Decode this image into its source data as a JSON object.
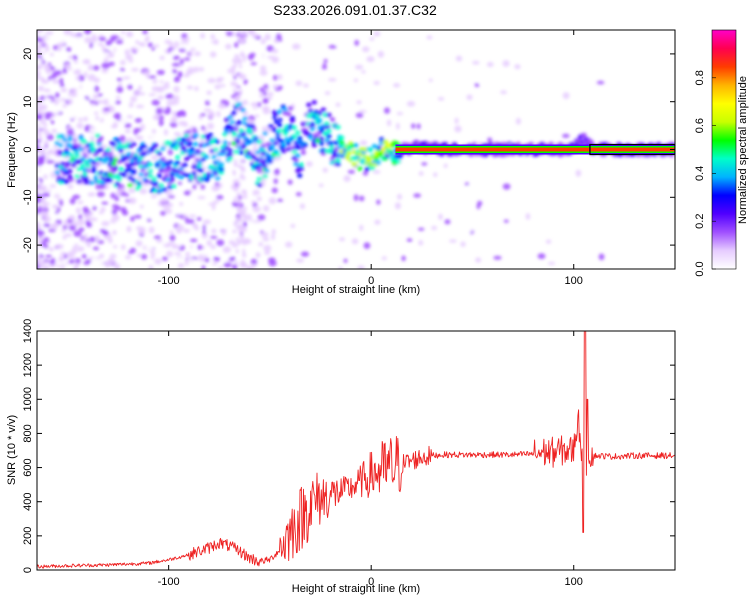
{
  "title": "S233.2026.091.01.37.C32",
  "chart_data": [
    {
      "type": "heatmap",
      "name": "spectrogram",
      "xlabel": "Height of straight line (km)",
      "ylabel": "Frequency (Hz)",
      "xlim": [
        -165,
        150
      ],
      "ylim": [
        -25,
        25
      ],
      "xticks": [
        -100,
        0,
        100
      ],
      "yticks": [
        -20,
        -10,
        0,
        10,
        20
      ],
      "colorbar": {
        "label": "Normalized spectral amplitude",
        "range": [
          0,
          1
        ],
        "ticks": [
          0.0,
          0.2,
          0.4,
          0.6,
          0.8
        ],
        "tick_labels": [
          "0.0",
          "0.2",
          "0.4",
          "0.6",
          "0.8"
        ],
        "colors": [
          "#ffffff",
          "#e6ccff",
          "#a050ff",
          "#5000ff",
          "#0000ff",
          "#00b4ff",
          "#00ffc8",
          "#00ff00",
          "#c8ff00",
          "#ffff00",
          "#ffb400",
          "#ff3c00",
          "#ff0050",
          "#ff00c8"
        ]
      },
      "ridge": [
        {
          "x": -135,
          "y": -2
        },
        {
          "x": -120,
          "y": -3
        },
        {
          "x": -105,
          "y": -4
        },
        {
          "x": -90,
          "y": -2
        },
        {
          "x": -75,
          "y": -1
        },
        {
          "x": -65,
          "y": 5
        },
        {
          "x": -55,
          "y": -3
        },
        {
          "x": -48,
          "y": 3
        },
        {
          "x": -40,
          "y": 5
        },
        {
          "x": -35,
          "y": -2
        },
        {
          "x": -30,
          "y": 6
        },
        {
          "x": -22,
          "y": 3
        },
        {
          "x": -15,
          "y": 1
        },
        {
          "x": -8,
          "y": -1
        },
        {
          "x": -5,
          "y": -2
        },
        {
          "x": 0,
          "y": -2
        },
        {
          "x": 5,
          "y": 0
        },
        {
          "x": 10,
          "y": -1
        },
        {
          "x": 20,
          "y": 0.5
        },
        {
          "x": 40,
          "y": 0
        },
        {
          "x": 60,
          "y": 0
        },
        {
          "x": 80,
          "y": 0
        },
        {
          "x": 95,
          "y": 0
        },
        {
          "x": 100,
          "y": 0.5
        },
        {
          "x": 105,
          "y": 2
        },
        {
          "x": 110,
          "y": 0
        },
        {
          "x": 150,
          "y": 0
        }
      ]
    },
    {
      "type": "line",
      "name": "snr",
      "xlabel": "Height of straight line (km)",
      "ylabel": "SNR (10 * v/v)",
      "xlim": [
        -165,
        150
      ],
      "ylim": [
        0,
        1400
      ],
      "xticks": [
        -100,
        0,
        100
      ],
      "yticks": [
        0,
        200,
        400,
        600,
        800,
        1000,
        1200,
        1400
      ],
      "color": "#ee2222",
      "x": [
        -165,
        -150,
        -130,
        -110,
        -100,
        -90,
        -80,
        -75,
        -70,
        -65,
        -60,
        -55,
        -50,
        -45,
        -40,
        -35,
        -30,
        -25,
        -20,
        -15,
        -10,
        -5,
        0,
        5,
        10,
        15,
        20,
        25,
        30,
        35,
        40,
        50,
        60,
        70,
        80,
        85,
        90,
        95,
        100,
        102,
        105,
        108,
        110,
        120,
        130,
        140,
        150
      ],
      "y": [
        20,
        25,
        30,
        40,
        60,
        90,
        130,
        160,
        140,
        110,
        70,
        50,
        60,
        120,
        220,
        300,
        380,
        420,
        440,
        460,
        480,
        520,
        560,
        580,
        600,
        620,
        640,
        660,
        670,
        675,
        675,
        675,
        675,
        675,
        680,
        690,
        690,
        700,
        700,
        900,
        600,
        690,
        670,
        665,
        670,
        670,
        670
      ]
    }
  ]
}
